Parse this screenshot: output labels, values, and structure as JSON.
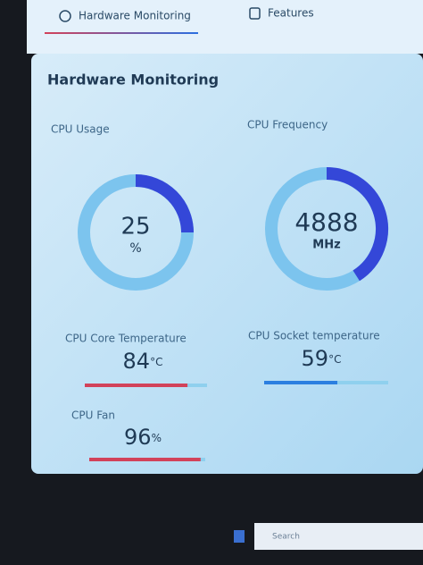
{
  "tabs": [
    "Hardware Monitoring",
    "Features"
  ],
  "title": "Hardware Monitoring",
  "scale": [
    0,
    100
  ],
  "gauges": [
    {
      "label": "CPU Usage",
      "value": 25,
      "unit": "%",
      "gauge_percent": 25
    },
    {
      "label": "CPU Frequency",
      "value": 4888,
      "unit": "MHz",
      "gauge_percent": 41
    }
  ],
  "bars": [
    {
      "label": "CPU Core Temperature",
      "value": 84,
      "unit": "°C",
      "color": "#d2425a"
    },
    {
      "label": "CPU Socket temperature",
      "value": 59,
      "unit": "°C",
      "color": "#2b7fe0"
    },
    {
      "label": "CPU Fan",
      "value": 96,
      "unit": "%",
      "color": "#d2425a"
    }
  ],
  "taskbar": {
    "search": "Search"
  }
}
